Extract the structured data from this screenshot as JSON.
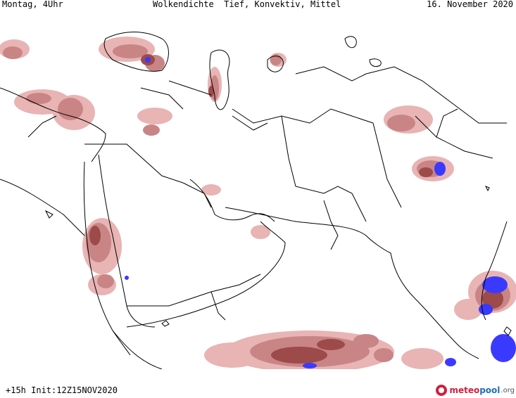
{
  "header": {
    "left": "Montag, 4Uhr",
    "title": "Wolkendichte  Tief, Konvektiv, Mittel",
    "right": "16. November 2020"
  },
  "footer": {
    "run": "+15h Init:12Z15NOV2020"
  },
  "logo": {
    "part1": "meteo",
    "part2": "pool",
    "part3": ".org"
  },
  "colors": {
    "cloud_light": "#e8b4b4",
    "cloud_mid": "#c98585",
    "cloud_dark": "#9c4a4a",
    "cloud_peak": "#3a3aff",
    "border": "#000000",
    "background": "#ffffff"
  }
}
